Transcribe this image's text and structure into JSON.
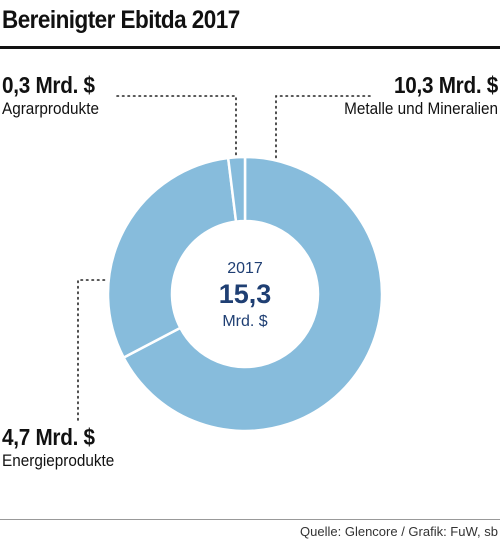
{
  "title": "Bereinigter Ebitda 2017",
  "source": "Quelle: Glencore / Grafik: FuW, sb",
  "colors": {
    "slice": "#87bcdc",
    "separator": "#ffffff",
    "center_text": "#1f3f73",
    "leader": "#222222"
  },
  "center": {
    "year": "2017",
    "total": "15,3",
    "unit": "Mrd. $"
  },
  "labels": {
    "agrar": {
      "value": "0,3 Mrd. $",
      "name": "Agrarprodukte"
    },
    "metalle": {
      "value": "10,3 Mrd. $",
      "name": "Metalle und Mineralien"
    },
    "energie": {
      "value": "4,7 Mrd. $",
      "name": "Energieprodukte"
    }
  },
  "chart_data": {
    "type": "pie",
    "title": "Bereinigter Ebitda 2017",
    "unit": "Mrd. $",
    "total": 15.3,
    "categories": [
      "Metalle und Mineralien",
      "Energieprodukte",
      "Agrarprodukte"
    ],
    "values": [
      10.3,
      4.7,
      0.3
    ]
  }
}
